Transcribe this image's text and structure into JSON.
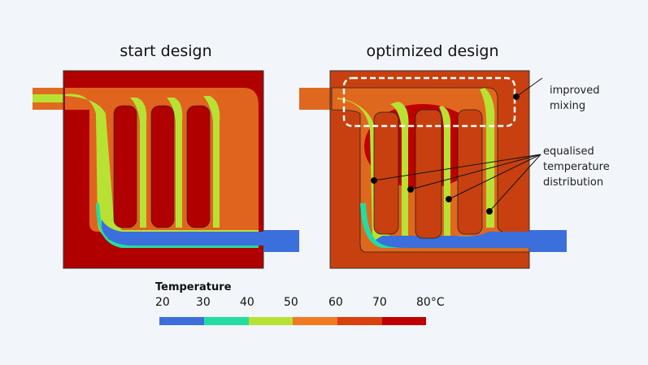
{
  "titles": {
    "left": "start design",
    "right": "optimized design"
  },
  "annotations": {
    "mixing": [
      "improved",
      "mixing"
    ],
    "distribution": [
      "equalised",
      "temperature",
      "distribution"
    ]
  },
  "legend": {
    "title": "Temperature",
    "ticks": [
      "20",
      "30",
      "40",
      "50",
      "60",
      "70",
      "80°C"
    ],
    "colors": [
      "#3b6fdc",
      "#22dca2",
      "#b7e234",
      "#f07a22",
      "#d8400c",
      "#c00000"
    ]
  }
}
